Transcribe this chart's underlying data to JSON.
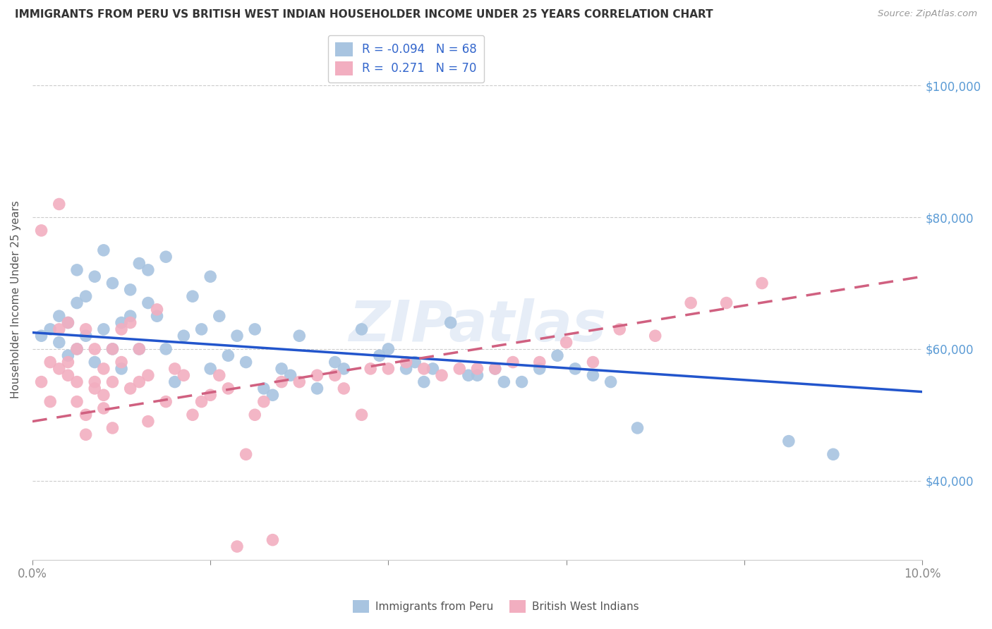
{
  "title": "IMMIGRANTS FROM PERU VS BRITISH WEST INDIAN HOUSEHOLDER INCOME UNDER 25 YEARS CORRELATION CHART",
  "source": "Source: ZipAtlas.com",
  "ylabel": "Householder Income Under 25 years",
  "watermark": "ZIPatlas",
  "legend_blue_label": "Immigrants from Peru",
  "legend_pink_label": "British West Indians",
  "xmin": 0.0,
  "xmax": 0.1,
  "ymin": 28000,
  "ymax": 107000,
  "yticks": [
    40000,
    60000,
    80000,
    100000
  ],
  "ytick_labels": [
    "$40,000",
    "$60,000",
    "$80,000",
    "$100,000"
  ],
  "xticks": [
    0.0,
    0.02,
    0.04,
    0.06,
    0.08,
    0.1
  ],
  "xtick_labels": [
    "0.0%",
    "",
    "",
    "",
    "",
    "10.0%"
  ],
  "blue_color": "#a8c4e0",
  "pink_color": "#f2aec0",
  "blue_line_color": "#2255cc",
  "pink_line_color": "#d06080",
  "right_label_color": "#5b9bd5",
  "blue_R": -0.094,
  "pink_R": 0.271,
  "blue_N": 68,
  "pink_N": 70,
  "blue_line_y0": 62500,
  "blue_line_y1": 53500,
  "pink_line_y0": 49000,
  "pink_line_y1": 71000,
  "blue_scatter_x": [
    0.001,
    0.002,
    0.003,
    0.003,
    0.004,
    0.004,
    0.005,
    0.005,
    0.005,
    0.006,
    0.006,
    0.007,
    0.007,
    0.008,
    0.008,
    0.009,
    0.009,
    0.01,
    0.01,
    0.011,
    0.011,
    0.012,
    0.012,
    0.013,
    0.013,
    0.014,
    0.015,
    0.015,
    0.016,
    0.017,
    0.018,
    0.019,
    0.02,
    0.02,
    0.021,
    0.022,
    0.023,
    0.024,
    0.025,
    0.026,
    0.027,
    0.028,
    0.029,
    0.03,
    0.032,
    0.034,
    0.035,
    0.037,
    0.039,
    0.04,
    0.042,
    0.043,
    0.044,
    0.045,
    0.047,
    0.049,
    0.05,
    0.052,
    0.053,
    0.055,
    0.057,
    0.059,
    0.061,
    0.063,
    0.065,
    0.068,
    0.085,
    0.09
  ],
  "blue_scatter_y": [
    62000,
    63000,
    61000,
    65000,
    59000,
    64000,
    67000,
    72000,
    60000,
    62000,
    68000,
    58000,
    71000,
    63000,
    75000,
    60000,
    70000,
    57000,
    64000,
    65000,
    69000,
    60000,
    73000,
    67000,
    72000,
    65000,
    74000,
    60000,
    55000,
    62000,
    68000,
    63000,
    71000,
    57000,
    65000,
    59000,
    62000,
    58000,
    63000,
    54000,
    53000,
    57000,
    56000,
    62000,
    54000,
    58000,
    57000,
    63000,
    59000,
    60000,
    57000,
    58000,
    55000,
    57000,
    64000,
    56000,
    56000,
    57000,
    55000,
    55000,
    57000,
    59000,
    57000,
    56000,
    55000,
    48000,
    46000,
    44000
  ],
  "pink_scatter_x": [
    0.001,
    0.001,
    0.002,
    0.002,
    0.003,
    0.003,
    0.003,
    0.004,
    0.004,
    0.004,
    0.005,
    0.005,
    0.005,
    0.006,
    0.006,
    0.006,
    0.007,
    0.007,
    0.007,
    0.008,
    0.008,
    0.008,
    0.009,
    0.009,
    0.009,
    0.01,
    0.01,
    0.011,
    0.011,
    0.012,
    0.012,
    0.013,
    0.013,
    0.014,
    0.015,
    0.016,
    0.017,
    0.018,
    0.019,
    0.02,
    0.021,
    0.022,
    0.023,
    0.024,
    0.025,
    0.026,
    0.027,
    0.028,
    0.03,
    0.032,
    0.034,
    0.035,
    0.037,
    0.038,
    0.04,
    0.042,
    0.044,
    0.046,
    0.048,
    0.05,
    0.052,
    0.054,
    0.057,
    0.06,
    0.063,
    0.066,
    0.07,
    0.074,
    0.078,
    0.082
  ],
  "pink_scatter_y": [
    55000,
    78000,
    58000,
    52000,
    82000,
    63000,
    57000,
    64000,
    58000,
    56000,
    60000,
    52000,
    55000,
    50000,
    47000,
    63000,
    54000,
    60000,
    55000,
    57000,
    51000,
    53000,
    48000,
    60000,
    55000,
    63000,
    58000,
    64000,
    54000,
    60000,
    55000,
    56000,
    49000,
    66000,
    52000,
    57000,
    56000,
    50000,
    52000,
    53000,
    56000,
    54000,
    30000,
    44000,
    50000,
    52000,
    31000,
    55000,
    55000,
    56000,
    56000,
    54000,
    50000,
    57000,
    57000,
    58000,
    57000,
    56000,
    57000,
    57000,
    57000,
    58000,
    58000,
    61000,
    58000,
    63000,
    62000,
    67000,
    67000,
    70000
  ]
}
